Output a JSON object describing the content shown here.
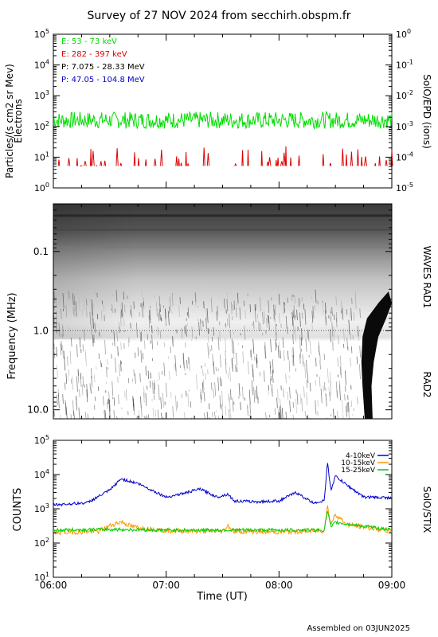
{
  "title": "Survey of 27 NOV 2024 from secchirh.obspm.fr",
  "footer": "Assembled on 03JUN2025",
  "x_axis": {
    "label": "Time (UT)",
    "ticks": [
      "06:00",
      "07:00",
      "08:00",
      "09:00"
    ]
  },
  "colors": {
    "electrons_low": "#00dd00",
    "electrons_high": "#dd0000",
    "protons_low": "#000000",
    "protons_high": "#0000cc",
    "stix_4_10": "#0000cc",
    "stix_10_15": "#ff9900",
    "stix_15_25": "#00cc00"
  },
  "chart_data": [
    {
      "type": "line",
      "panel": "particles",
      "ylabel": "Particles/(s cm2 sr Mev)",
      "ylabel2": "Electrons",
      "right_label": "SolO/EPD (ions)",
      "y_scale": "log",
      "ylim": [
        1,
        100000
      ],
      "y2lim": [
        1e-05,
        1
      ],
      "y_ticks": [
        "10^0",
        "10^1",
        "10^2",
        "10^3",
        "10^4",
        "10^5"
      ],
      "y2_ticks": [
        "10^-5",
        "10^-4",
        "10^-3",
        "10^-2",
        "10^-1",
        "10^0"
      ],
      "x_range_hours": [
        6,
        9
      ],
      "legend_placement": "top-left",
      "series": [
        {
          "name": "E: 53 - 73 keV",
          "level": 160,
          "shape": "noisy flat"
        },
        {
          "name": "E: 282 - 397 keV",
          "level": 10,
          "shape": "sparse spikes 5-25"
        },
        {
          "name": "P: 7.075 - 28.33 MeV",
          "level": null,
          "shape": "not shown"
        },
        {
          "name": "P: 47.05 - 104.8 MeV",
          "level": null,
          "shape": "not shown"
        }
      ]
    },
    {
      "type": "heatmap",
      "panel": "radio",
      "ylabel": "Frequency (MHz)",
      "right_label_top": "WAVES RAD1",
      "right_label_bottom": "RAD2",
      "y_scale": "log",
      "y_inverted": true,
      "ylim": [
        0.025,
        13
      ],
      "y_ticks": [
        "0.1",
        "1.0",
        "10.0"
      ],
      "x_range_hours": [
        6,
        9
      ],
      "features": [
        "dark band near top (0.03-0.05 MHz)",
        "bright gap around 0.3-0.5 MHz",
        "many short vertical bursts after 06:20",
        "strong Type III-like burst near 08:45-09:00 curving from 0.3 MHz down to 13 MHz"
      ]
    },
    {
      "type": "line",
      "panel": "stix",
      "ylabel": "COUNTS",
      "right_label": "SolO/STIX",
      "y_scale": "log",
      "ylim": [
        10,
        100000
      ],
      "y_ticks": [
        "10^1",
        "10^2",
        "10^3",
        "10^4",
        "10^5"
      ],
      "x_range_hours": [
        6,
        9
      ],
      "legend_placement": "top-right",
      "series": [
        {
          "name": "4-10keV",
          "x": [
            6.0,
            6.3,
            6.5,
            6.6,
            6.75,
            7.0,
            7.15,
            7.3,
            7.45,
            7.55,
            7.6,
            7.8,
            8.0,
            8.15,
            8.3,
            8.4,
            8.43,
            8.46,
            8.5,
            8.6,
            8.75,
            9.0
          ],
          "y": [
            1300,
            1500,
            3500,
            7500,
            5500,
            2200,
            2800,
            3800,
            2200,
            2700,
            1700,
            1600,
            1700,
            3000,
            1500,
            1700,
            22000,
            3500,
            9000,
            5000,
            2200,
            2100
          ]
        },
        {
          "name": "10-15keV",
          "x": [
            6.0,
            6.4,
            6.5,
            6.6,
            6.7,
            7.0,
            7.5,
            7.55,
            7.6,
            8.0,
            8.4,
            8.43,
            8.46,
            8.5,
            8.6,
            9.0
          ],
          "y": [
            200,
            220,
            320,
            420,
            300,
            230,
            220,
            320,
            220,
            210,
            230,
            1200,
            350,
            700,
            350,
            220
          ]
        },
        {
          "name": "15-25keV",
          "x": [
            6.0,
            6.5,
            7.0,
            7.5,
            8.0,
            8.4,
            8.43,
            8.46,
            8.5,
            9.0
          ],
          "y": [
            240,
            250,
            240,
            240,
            240,
            240,
            900,
            280,
            400,
            240
          ]
        }
      ]
    }
  ]
}
